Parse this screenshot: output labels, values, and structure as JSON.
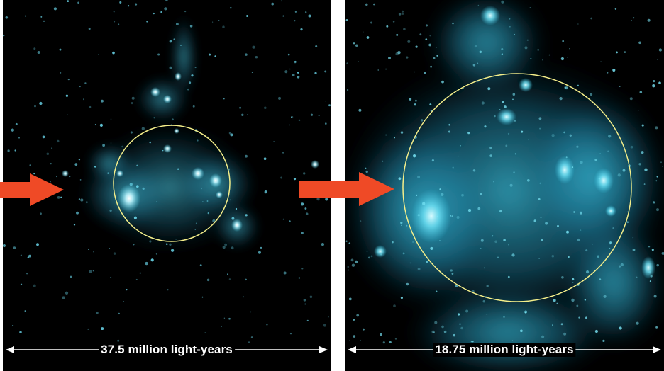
{
  "panels": {
    "left": {
      "scale_label": "37.5 million light-years"
    },
    "right": {
      "scale_label": "18.75 million light-years"
    }
  },
  "colors": {
    "glow": "#4fd6f0",
    "core": "#e9ffff",
    "circle": "#f4ee8a",
    "arrow": "#ef4a26",
    "background": "#000000"
  },
  "icons": {
    "arrow": "right-pointing-arrow-icon",
    "scale": "double-headed-arrow-icon"
  }
}
